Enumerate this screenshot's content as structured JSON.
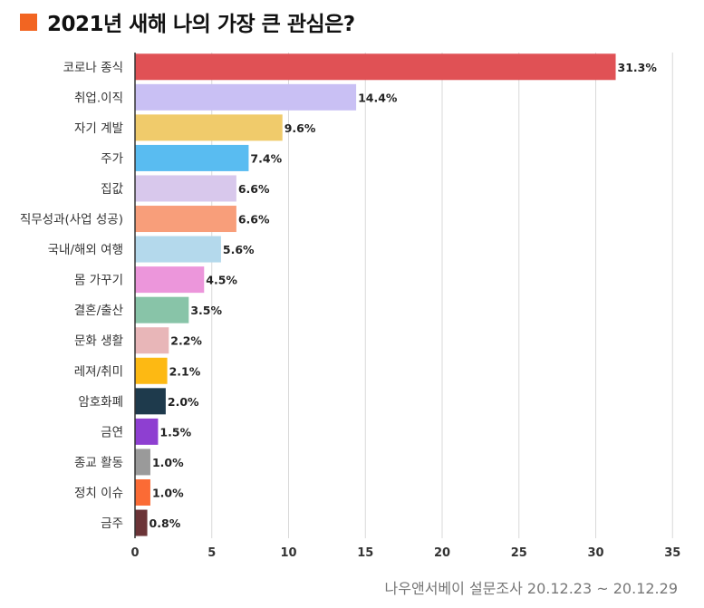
{
  "header": {
    "title": "2021년 새해 나의 가장 큰 관심은?",
    "accent_color": "#f26522"
  },
  "source_note": "나우앤서베이 설문조사 20.12.23 ~ 20.12.29",
  "chart_data": {
    "type": "bar",
    "orientation": "horizontal",
    "categories": [
      "코로나 종식",
      "취업.이직",
      "자기 계발",
      "주가",
      "집값",
      "직무성과(사업 성공)",
      "국내/해외 여행",
      "몸 가꾸기",
      "결혼/출산",
      "문화 생활",
      "레져/취미",
      "암호화폐",
      "금연",
      "종교 활동",
      "정치 이슈",
      "금주"
    ],
    "values": [
      31.3,
      14.4,
      9.6,
      7.4,
      6.6,
      6.6,
      5.6,
      4.5,
      3.5,
      2.2,
      2.1,
      2.0,
      1.5,
      1.0,
      1.0,
      0.8
    ],
    "value_labels": [
      "31.3%",
      "14.4%",
      "9.6%",
      "7.4%",
      "6.6%",
      "6.6%",
      "5.6%",
      "4.5%",
      "3.5%",
      "2.2%",
      "2.1%",
      "2.0%",
      "1.5%",
      "1.0%",
      "1.0%",
      "0.8%"
    ],
    "colors": [
      "#e05155",
      "#c9c0f4",
      "#f0cb6b",
      "#59bcf1",
      "#d8c8ec",
      "#f89e7a",
      "#b4d9ec",
      "#ec96db",
      "#88c4a8",
      "#e8b6b8",
      "#fdb913",
      "#1e3a4c",
      "#8e3fd1",
      "#9a9a9a",
      "#fb6b35",
      "#6b3437"
    ],
    "xlim": [
      0,
      35
    ],
    "xticks": [
      0,
      5,
      10,
      15,
      20,
      25,
      30,
      35
    ],
    "grid": true,
    "xlabel": "",
    "ylabel": ""
  }
}
